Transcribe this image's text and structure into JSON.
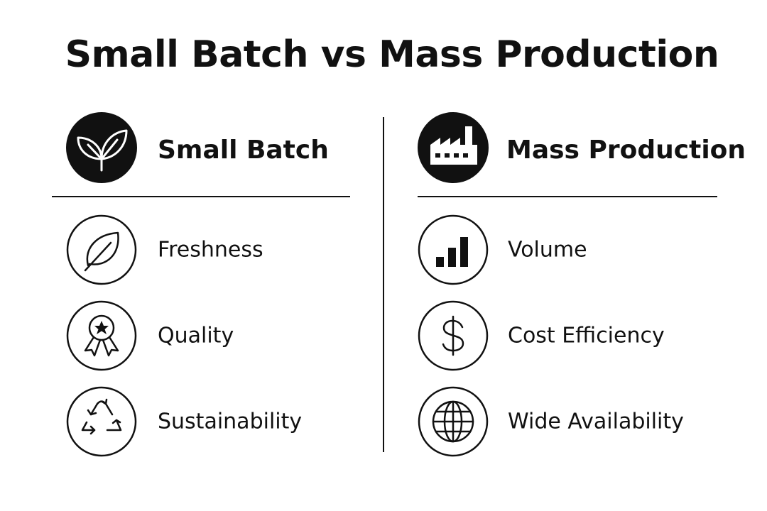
{
  "title": "Small Batch vs Mass Production",
  "columns": [
    {
      "heading": "Small Batch",
      "items": [
        "Freshness",
        "Quality",
        "Sustainability"
      ]
    },
    {
      "heading": "Mass Production",
      "items": [
        "Volume",
        "Cost Efficiency",
        "Wide Availability"
      ]
    }
  ]
}
